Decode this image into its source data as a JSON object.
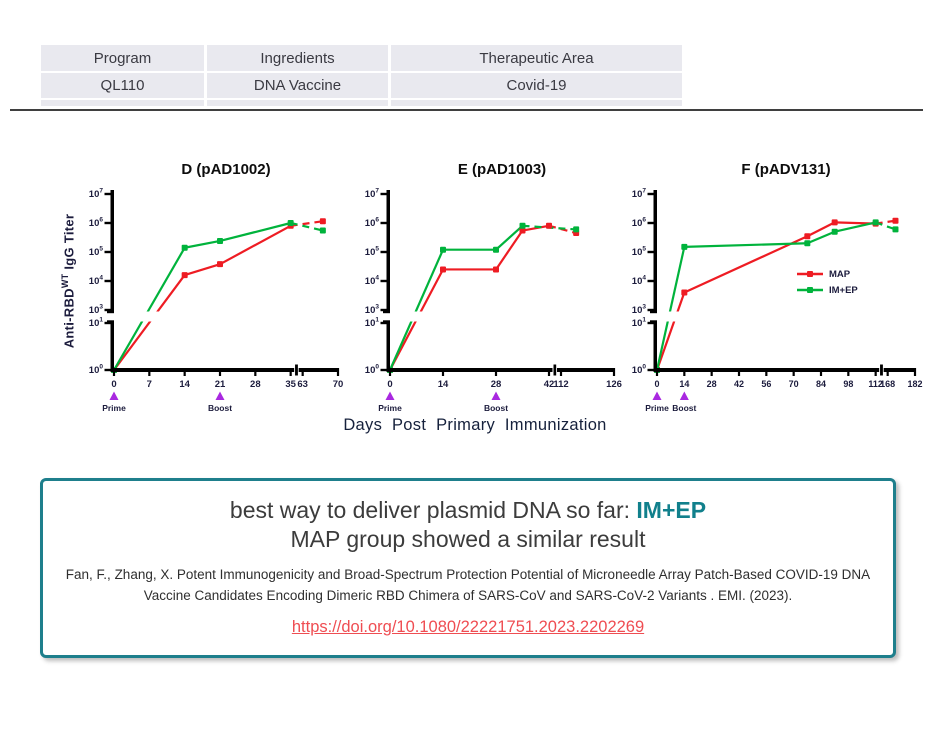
{
  "table": {
    "headers": [
      "Program",
      "Ingredients",
      "Therapeutic Area"
    ],
    "rows": [
      [
        "QL110",
        "DNA Vaccine",
        "Covid-19"
      ]
    ]
  },
  "figure": {
    "y_axis_label": {
      "prefix": "Anti-RBD",
      "sup": "WT",
      "suffix": " IgG Titer"
    },
    "x_axis_label": "Days Post Primary Immunization",
    "prime_label": "Prime",
    "boost_label": "Boost",
    "colors": {
      "map": "#ee1c23",
      "im_ep": "#00b33c",
      "triangle": "#a928e0",
      "axis_text": "#1c1c3d",
      "axis": "#000000",
      "title": "#0d0d0d"
    },
    "legend": [
      {
        "name": "MAP",
        "color": "#ee1c23"
      },
      {
        "name": "IM+EP",
        "color": "#00b33c"
      }
    ]
  },
  "chart_data": [
    {
      "type": "line",
      "title": "D (pAD1002)",
      "xlabel": "Days Post Primary Immunization",
      "ylabel": "Anti-RBD WT IgG Titer",
      "y_scale": "log",
      "y_ticks_exponents": [
        0,
        1,
        3,
        4,
        5,
        6,
        7
      ],
      "y_break_between": [
        1,
        3
      ],
      "x_seg1_ticks": [
        0,
        7,
        14,
        21,
        28,
        35
      ],
      "x_seg2_ticks": [
        63,
        70
      ],
      "prime_day": 0,
      "boost_day": 21,
      "tick_font": 9.5,
      "show_legend": false,
      "series": [
        {
          "name": "MAP",
          "color": "#ee1c23",
          "points": [
            [
              0,
              1
            ],
            [
              14,
              16000
            ],
            [
              21,
              38000
            ],
            [
              35,
              800000
            ],
            [
              67,
              1150000
            ]
          ]
        },
        {
          "name": "IM+EP",
          "color": "#00b33c",
          "points": [
            [
              0,
              1
            ],
            [
              14,
              140000
            ],
            [
              21,
              240000
            ],
            [
              35,
              1000000
            ],
            [
              67,
              550000
            ]
          ]
        }
      ]
    },
    {
      "type": "line",
      "title": "E (pAD1003)",
      "xlabel": "Days Post Primary Immunization",
      "ylabel": "Anti-RBD WT IgG Titer",
      "y_scale": "log",
      "y_ticks_exponents": [
        0,
        1,
        3,
        4,
        5,
        6,
        7
      ],
      "y_break_between": [
        1,
        3
      ],
      "x_seg1_ticks": [
        0,
        14,
        28,
        42
      ],
      "x_seg2_ticks": [
        112,
        126
      ],
      "prime_day": 0,
      "boost_day": 28,
      "tick_font": 9.5,
      "show_legend": false,
      "series": [
        {
          "name": "MAP",
          "color": "#ee1c23",
          "points": [
            [
              0,
              1
            ],
            [
              14,
              25000
            ],
            [
              28,
              25000
            ],
            [
              35,
              550000
            ],
            [
              42,
              800000
            ],
            [
              116,
              450000
            ]
          ]
        },
        {
          "name": "IM+EP",
          "color": "#00b33c",
          "points": [
            [
              0,
              1
            ],
            [
              14,
              120000
            ],
            [
              28,
              120000
            ],
            [
              35,
              800000
            ],
            [
              116,
              600000
            ]
          ]
        }
      ]
    },
    {
      "type": "line",
      "title": "F (pADV131)",
      "xlabel": "Days Post Primary Immunization",
      "ylabel": "Anti-RBD WT IgG Titer",
      "y_scale": "log",
      "y_ticks_exponents": [
        0,
        1,
        3,
        4,
        5,
        6,
        7
      ],
      "y_break_between": [
        1,
        3
      ],
      "x_seg1_ticks": [
        0,
        14,
        28,
        42,
        56,
        70,
        84,
        98,
        112
      ],
      "x_seg2_ticks": [
        168,
        182
      ],
      "prime_day": 0,
      "boost_day": 14,
      "tick_font": 9,
      "show_legend": true,
      "series": [
        {
          "name": "MAP",
          "color": "#ee1c23",
          "points": [
            [
              0,
              1
            ],
            [
              14,
              4000
            ],
            [
              77,
              350000
            ],
            [
              91,
              1050000
            ],
            [
              112,
              950000
            ],
            [
              172,
              1200000
            ]
          ]
        },
        {
          "name": "IM+EP",
          "color": "#00b33c",
          "points": [
            [
              0,
              1
            ],
            [
              14,
              150000
            ],
            [
              77,
              200000
            ],
            [
              91,
              500000
            ],
            [
              112,
              1050000
            ],
            [
              172,
              600000
            ]
          ]
        }
      ]
    }
  ],
  "callout": {
    "line1_prefix": "best way to deliver plasmid DNA so far: ",
    "line1_highlight": "IM+EP",
    "line2": "MAP group showed a similar result",
    "citation": "Fan, F., Zhang, X. Potent Immunogenicity and Broad-Spectrum Protection Potential of Microneedle Array Patch-Based COVID-19 DNA Vaccine Candidates Encoding Dimeric RBD Chimera of SARS-CoV and SARS-CoV-2 Variants . EMI. (2023).",
    "link": "https://doi.org/10.1080/22221751.2023.2202269",
    "accent_color": "#11808c",
    "border_color": "#1e7f8c",
    "link_color": "#ef4d52"
  }
}
